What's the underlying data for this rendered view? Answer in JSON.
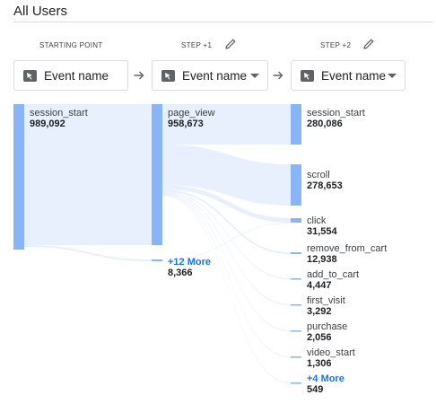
{
  "segment": {
    "title": "All Users"
  },
  "steps": [
    {
      "label": "STARTING POINT",
      "dimension": "Event name",
      "editable": false,
      "has_dropdown": false
    },
    {
      "label": "STEP +1",
      "dimension": "Event name",
      "editable": true,
      "has_dropdown": true
    },
    {
      "label": "STEP +2",
      "dimension": "Event name",
      "editable": true,
      "has_dropdown": true
    }
  ],
  "icons": {
    "edit": "pencil-icon",
    "arrow": "arrow-right-icon",
    "dimension": "cursor-chip-icon",
    "dropdown": "caret-down-icon"
  },
  "colors": {
    "node": "#8ab4f8",
    "flow": "#e8effd",
    "link": "#1a73e8"
  },
  "nodes": {
    "start": {
      "name": "session_start",
      "value": "989,092"
    },
    "step1": [
      {
        "name": "page_view",
        "value": "958,673"
      },
      {
        "name": "+12 More",
        "value": "8,366",
        "link": true
      }
    ],
    "step2": [
      {
        "name": "session_start",
        "value": "280,086"
      },
      {
        "name": "scroll",
        "value": "278,653"
      },
      {
        "name": "click",
        "value": "31,554"
      },
      {
        "name": "remove_from_cart",
        "value": "12,938"
      },
      {
        "name": "add_to_cart",
        "value": "4,447"
      },
      {
        "name": "first_visit",
        "value": "3,292"
      },
      {
        "name": "purchase",
        "value": "2,056"
      },
      {
        "name": "video_start",
        "value": "1,306"
      },
      {
        "name": "+4 More",
        "value": "549",
        "link": true
      }
    ]
  }
}
